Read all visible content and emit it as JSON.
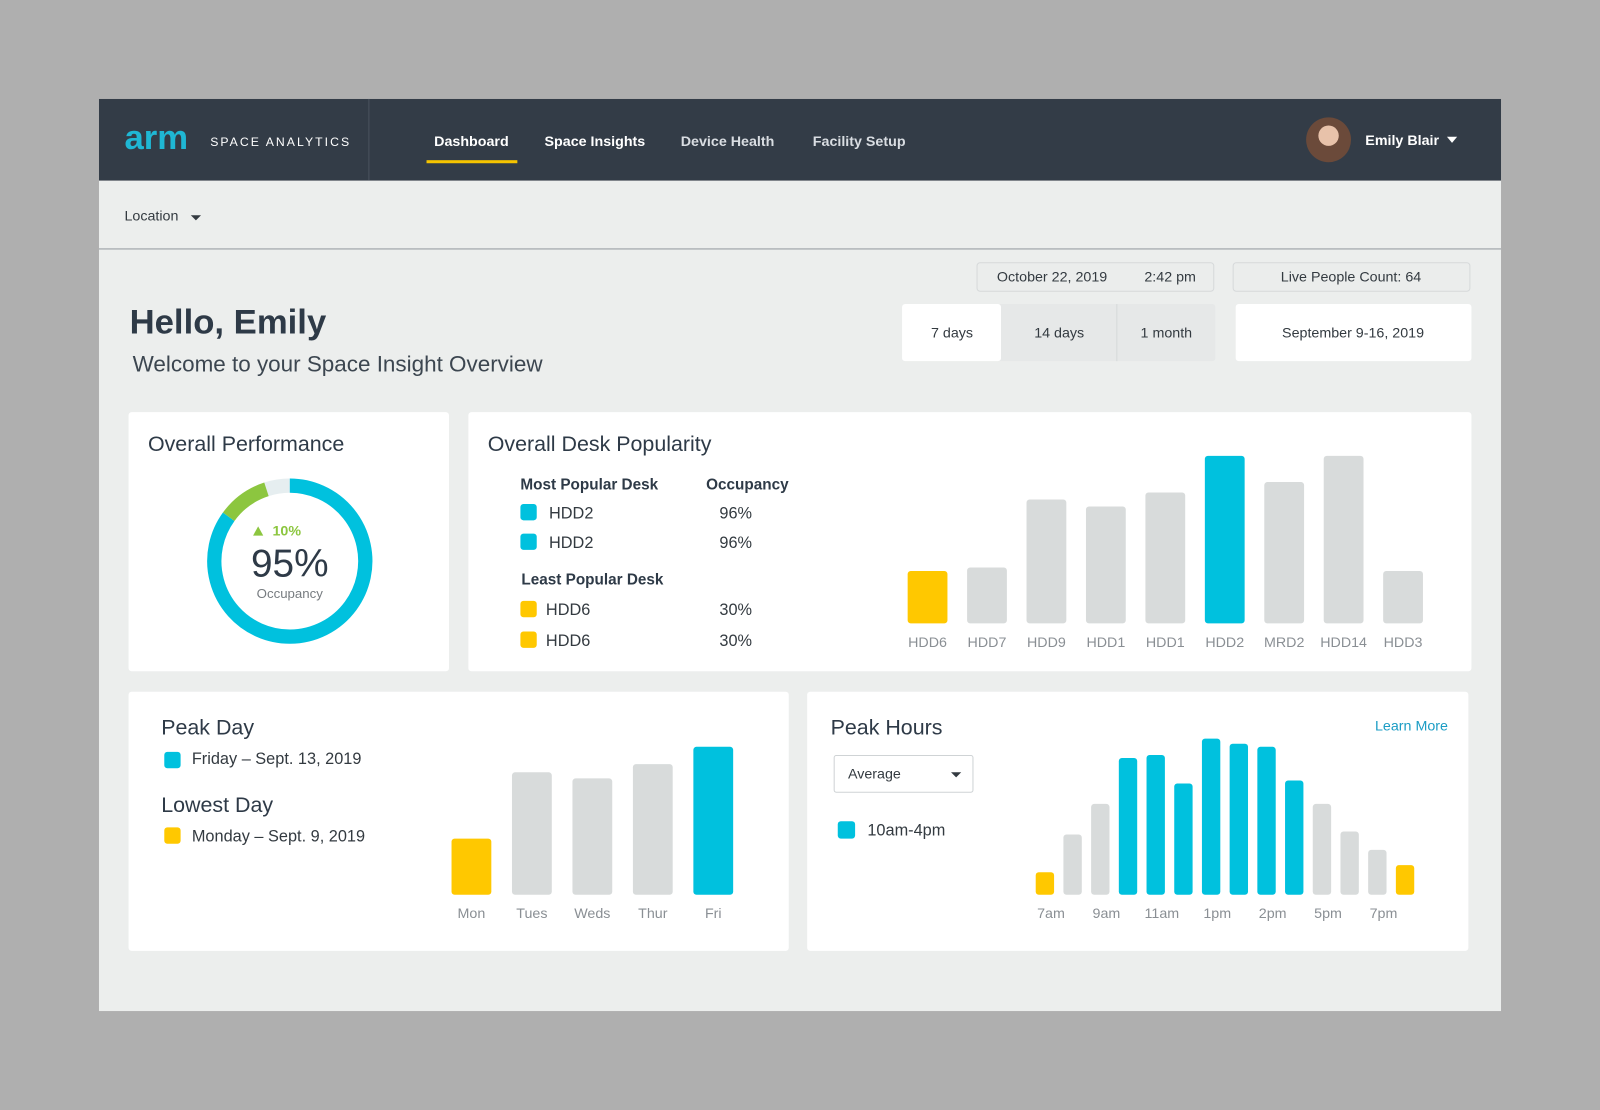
{
  "nav": {
    "logo": "arm",
    "brand": "SPACE ANALYTICS",
    "items": [
      "Dashboard",
      "Space Insights",
      "Device Health",
      "Facility Setup"
    ],
    "user": "Emily Blair"
  },
  "filter": {
    "location": "Location"
  },
  "status": {
    "date": "October 22, 2019",
    "time": "2:42 pm",
    "live_count": "Live People Count: 64"
  },
  "header": {
    "title": "Hello, Emily",
    "subtitle": "Welcome to your Space Insight Overview"
  },
  "range": {
    "options": [
      "7 days",
      "14 days",
      "1 month"
    ],
    "dates": "September 9-16, 2019"
  },
  "desk_table": {
    "most_header": "Most Popular Desk",
    "occupancy_header": "Occupancy",
    "most_color": "#00c1de",
    "most": [
      {
        "desk": "HDD2",
        "occupancy": "96%"
      },
      {
        "desk": "HDD2",
        "occupancy": "96%"
      }
    ],
    "least_header": "Least Popular Desk",
    "least_color": "#ffc800",
    "least": [
      {
        "desk": "HDD6",
        "occupancy": "30%"
      },
      {
        "desk": "HDD6",
        "occupancy": "30%"
      }
    ]
  },
  "peak_day": {
    "peak": "Friday – Sept. 13, 2019",
    "peak_color": "#00c1de",
    "lowest_title": "Lowest Day",
    "lowest": "Monday – Sept. 9, 2019",
    "lowest_color": "#ffc800"
  },
  "peak_hours": {
    "link": "Learn More",
    "dropdown": "Average",
    "legend": "10am-4pm",
    "legend_color": "#00c1de"
  },
  "chart_data": [
    {
      "type": "donut",
      "title": "Overall Performance",
      "value": 95,
      "value_label": "95%",
      "change": 10,
      "change_label": "10%",
      "caption": "Occupancy",
      "color": "#00c1de",
      "change_color": "#8cc63f",
      "track_color": "#e6eef0"
    },
    {
      "type": "bar",
      "title": "Overall Desk Popularity",
      "categories": [
        "HDD6",
        "HDD7",
        "HDD9",
        "HDD1",
        "HDD1",
        "HDD2",
        "MRD2",
        "HDD14",
        "HDD3"
      ],
      "values": [
        30,
        32,
        71,
        67,
        75,
        96,
        81,
        96,
        30
      ],
      "colors": [
        "#ffc800",
        "#d8dbdb",
        "#d8dbdb",
        "#d8dbdb",
        "#d8dbdb",
        "#00c1de",
        "#d8dbdb",
        "#d8dbdb",
        "#d8dbdb"
      ],
      "ylim": [
        0,
        100
      ]
    },
    {
      "type": "bar",
      "title": "Peak Day",
      "categories": [
        "Mon",
        "Tues",
        "Weds",
        "Thur",
        "Fri"
      ],
      "values": [
        55,
        120,
        114,
        128,
        145
      ],
      "colors": [
        "#ffc800",
        "#d8dbdb",
        "#d8dbdb",
        "#d8dbdb",
        "#00c1de"
      ],
      "ylim": [
        0,
        150
      ]
    },
    {
      "type": "bar",
      "title": "Peak Hours",
      "categories": [
        "7am",
        null,
        "9am",
        null,
        "11am",
        null,
        "1pm",
        null,
        "2pm",
        null,
        "5pm",
        null,
        "7pm",
        null
      ],
      "values": [
        22,
        59,
        89,
        134,
        137,
        109,
        153,
        148,
        145,
        112,
        89,
        62,
        44,
        29
      ],
      "colors": [
        "#ffc800",
        "#d8dbdb",
        "#d8dbdb",
        "#00c1de",
        "#00c1de",
        "#00c1de",
        "#00c1de",
        "#00c1de",
        "#00c1de",
        "#00c1de",
        "#d8dbdb",
        "#d8dbdb",
        "#d8dbdb",
        "#ffc800"
      ],
      "ylim": [
        0,
        160
      ]
    }
  ]
}
